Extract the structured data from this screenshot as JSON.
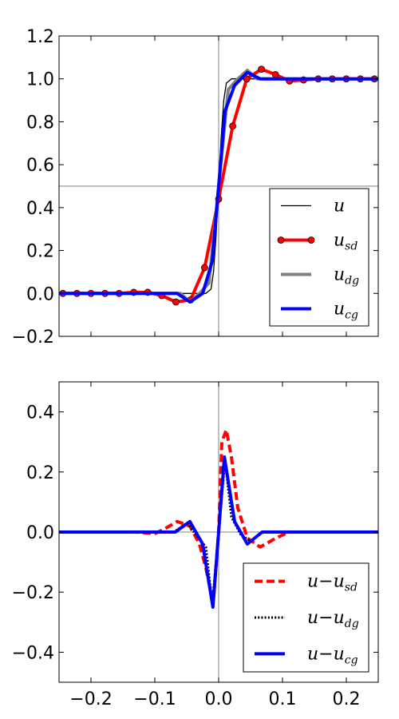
{
  "chart_data": [
    {
      "type": "line",
      "title": "",
      "xlabel": "",
      "ylabel": "",
      "xlim": [
        -0.25,
        0.25
      ],
      "ylim": [
        -0.2,
        1.2
      ],
      "x_ticks": [],
      "y_ticks": [
        -0.2,
        0.0,
        0.2,
        0.4,
        0.6,
        0.8,
        1.0,
        1.2
      ],
      "y_tick_labels": [
        "−0.2",
        "0.0",
        "0.2",
        "0.4",
        "0.6",
        "0.8",
        "1.0",
        "1.2"
      ],
      "reference_lines": {
        "x": 0.0,
        "y": 0.5
      },
      "legend_position": "lower-right",
      "series": [
        {
          "name": "u",
          "subscript": "",
          "color": "#000000",
          "style": "solid",
          "x": [
            -0.25,
            -0.1,
            -0.02,
            -0.012,
            -0.008,
            -0.004,
            0.0,
            0.004,
            0.008,
            0.012,
            0.02,
            0.1,
            0.25
          ],
          "y": [
            0.0,
            0.0,
            0.0,
            0.02,
            0.1,
            0.27,
            0.5,
            0.73,
            0.9,
            0.98,
            1.0,
            1.0,
            1.0
          ]
        },
        {
          "name": "u",
          "subscript": "sd",
          "color": "#ff0000",
          "style": "solid-markers",
          "x": [
            -0.244,
            -0.222,
            -0.2,
            -0.178,
            -0.156,
            -0.133,
            -0.111,
            -0.089,
            -0.067,
            -0.044,
            -0.022,
            0.0,
            0.022,
            0.044,
            0.067,
            0.089,
            0.111,
            0.133,
            0.156,
            0.178,
            0.2,
            0.222,
            0.244
          ],
          "y": [
            0.0,
            0.0,
            0.0,
            0.0,
            0.0,
            0.005,
            0.005,
            -0.01,
            -0.04,
            -0.03,
            0.12,
            0.44,
            0.78,
            1.0,
            1.045,
            1.02,
            0.99,
            0.995,
            1.0,
            1.0,
            1.0,
            1.0,
            1.0
          ]
        },
        {
          "name": "u",
          "subscript": "dg",
          "color": "#808080",
          "style": "solid",
          "x": [
            -0.25,
            -0.06,
            -0.045,
            -0.03,
            -0.015,
            0.0,
            0.015,
            0.03,
            0.045,
            0.06,
            0.25
          ],
          "y": [
            0.0,
            0.0,
            -0.04,
            0.0,
            0.05,
            0.5,
            0.95,
            1.0,
            1.04,
            1.0,
            1.0
          ]
        },
        {
          "name": "u",
          "subscript": "cg",
          "color": "#0000ff",
          "style": "solid",
          "x": [
            -0.25,
            -0.065,
            -0.045,
            -0.025,
            -0.01,
            0.0,
            0.01,
            0.025,
            0.045,
            0.065,
            0.25
          ],
          "y": [
            0.0,
            0.0,
            -0.04,
            0.0,
            0.15,
            0.5,
            0.85,
            0.97,
            1.03,
            1.0,
            1.0
          ]
        }
      ]
    },
    {
      "type": "line",
      "title": "",
      "xlabel": "",
      "ylabel": "",
      "xlim": [
        -0.25,
        0.25
      ],
      "ylim": [
        -0.5,
        0.5
      ],
      "x_ticks": [
        -0.2,
        -0.1,
        0.0,
        0.1,
        0.2
      ],
      "x_tick_labels": [
        "−0.2",
        "−0.1",
        "0.0",
        "0.1",
        "0.2"
      ],
      "y_ticks": [
        -0.4,
        -0.2,
        0.0,
        0.2,
        0.4
      ],
      "y_tick_labels": [
        "−0.4",
        "−0.2",
        "0.0",
        "0.2",
        "0.4"
      ],
      "reference_lines": {
        "x": 0.0,
        "y": 0.0
      },
      "legend_position": "lower-right",
      "series": [
        {
          "name": "u−u",
          "subscript": "sd",
          "color": "#ff0000",
          "style": "dashed",
          "x": [
            -0.25,
            -0.13,
            -0.1,
            -0.085,
            -0.065,
            -0.045,
            -0.03,
            -0.02,
            -0.012,
            -0.008,
            0.0,
            0.005,
            0.012,
            0.02,
            0.03,
            0.045,
            0.065,
            0.09,
            0.11,
            0.25
          ],
          "y": [
            0.0,
            0.0,
            -0.005,
            0.01,
            0.035,
            0.02,
            -0.04,
            -0.12,
            -0.2,
            -0.22,
            0.0,
            0.3,
            0.34,
            0.25,
            0.08,
            -0.02,
            -0.05,
            -0.02,
            0.0,
            0.0
          ]
        },
        {
          "name": "u−u",
          "subscript": "dg",
          "color": "#000000",
          "style": "dotted",
          "x": [
            -0.25,
            -0.07,
            -0.05,
            -0.035,
            -0.02,
            -0.01,
            0.0,
            0.01,
            0.02,
            0.035,
            0.05,
            0.07,
            0.25
          ],
          "y": [
            0.0,
            0.0,
            0.03,
            -0.01,
            -0.05,
            -0.24,
            0.0,
            0.24,
            0.05,
            -0.01,
            -0.03,
            0.0,
            0.0
          ]
        },
        {
          "name": "u−u",
          "subscript": "cg",
          "color": "#0000ff",
          "style": "solid",
          "x": [
            -0.25,
            -0.068,
            -0.045,
            -0.025,
            -0.009,
            0.0,
            0.009,
            0.025,
            0.045,
            0.068,
            0.25
          ],
          "y": [
            0.0,
            0.0,
            0.035,
            -0.04,
            -0.25,
            0.0,
            0.25,
            0.035,
            -0.04,
            0.0,
            0.0
          ]
        }
      ]
    }
  ]
}
